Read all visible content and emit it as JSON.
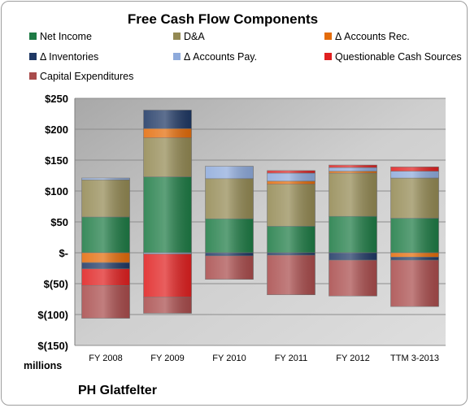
{
  "chart_data": {
    "type": "bar",
    "stacked": true,
    "title": "Free Cash Flow Components",
    "ylabel": "",
    "xlabel": "",
    "units_label": "millions",
    "ylim": [
      -150,
      250
    ],
    "yticks": [
      250,
      200,
      150,
      100,
      50,
      0,
      -50,
      -100,
      -150
    ],
    "ytick_labels": [
      "$250",
      "$200",
      "$150",
      "$100",
      "$50",
      "$-",
      "$(50)",
      "$(100)",
      "$(150)"
    ],
    "grid": true,
    "legend_position": "top",
    "categories": [
      "FY 2008",
      "FY 2009",
      "FY 2010",
      "FY 2011",
      "FY 2012",
      "TTM 3-2013"
    ],
    "series": [
      {
        "name": "Net Income",
        "color": "#1e7b45",
        "values": [
          58,
          123,
          55,
          43,
          59,
          56
        ]
      },
      {
        "name": "D&A",
        "color": "#938953",
        "values": [
          60,
          63,
          65,
          68,
          70,
          65
        ]
      },
      {
        "name": "Δ Accounts Rec.",
        "color": "#e46c0a",
        "values": [
          -16,
          15,
          0,
          5,
          3,
          -7
        ]
      },
      {
        "name": "Δ Inventories",
        "color": "#1f3864",
        "values": [
          -10,
          30,
          -5,
          -4,
          -12,
          -5
        ]
      },
      {
        "name": "Δ Accounts Pay.",
        "color": "#8eaadb",
        "values": [
          3,
          -2,
          20,
          13,
          6,
          11
        ]
      },
      {
        "name": "Questionable Cash Sources",
        "color": "#e02020",
        "values": [
          -27,
          -70,
          0,
          4,
          4,
          7
        ]
      },
      {
        "name": "Capital Expenditures",
        "color": "#a94c4c",
        "values": [
          -53,
          -26,
          -38,
          -64,
          -58,
          -75
        ]
      }
    ]
  },
  "footer": {
    "company": "PH Glatfelter"
  },
  "colors": {
    "plot_bg": "#c0c0c0",
    "gridline": "#8c8c8c"
  }
}
